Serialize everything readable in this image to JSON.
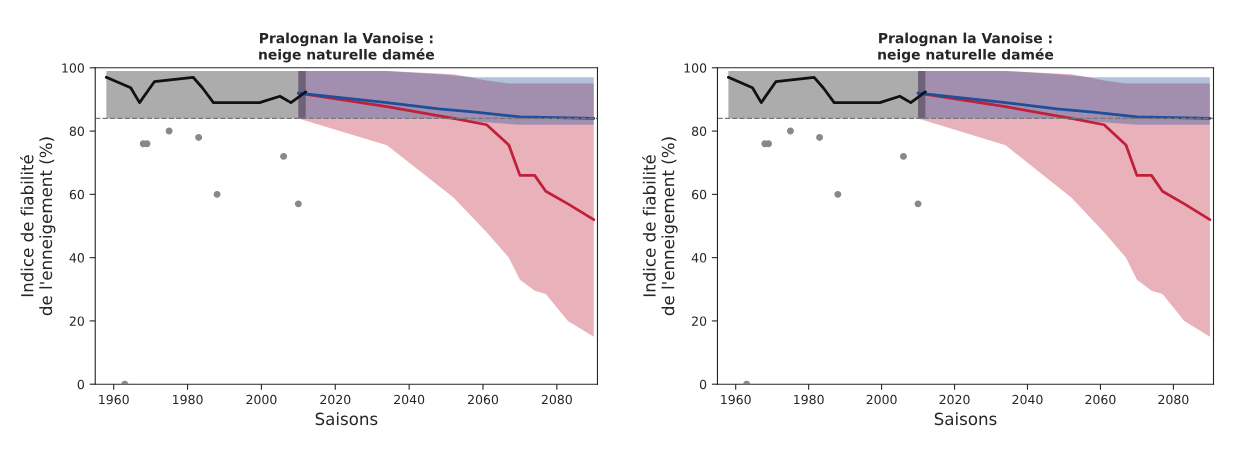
{
  "chart_data": [
    {
      "type": "line",
      "title": "Pralognan la Vanoise :\nneige naturelle damée",
      "xlabel": "Saisons",
      "ylabel": "Indice de fiabilité\nde l'enneigement (%)",
      "xlim": [
        1955,
        2091
      ],
      "xticks": [
        1960,
        1980,
        2000,
        2020,
        2040,
        2060,
        2080
      ],
      "ylim": [
        0,
        100
      ],
      "yticks": [
        0,
        20,
        40,
        60,
        80,
        100
      ],
      "grid": false,
      "legend": false,
      "ref_lines": [
        {
          "axis": "y",
          "value": 84,
          "color": "#777777",
          "line_style": "dashed"
        }
      ],
      "series": [
        {
          "color": "#c0203a",
          "x": [
            2010,
            2034,
            2052,
            2061,
            2067,
            2070,
            2074,
            2077,
            2083,
            2090
          ],
          "values": [
            92,
            87.7,
            84,
            82,
            75.6,
            66,
            66,
            61,
            57,
            52
          ],
          "lower": [
            84,
            75.5,
            59,
            48,
            40,
            33,
            29.5,
            28.5,
            20,
            15
          ],
          "upper": [
            99,
            99,
            98,
            96,
            95,
            95,
            95,
            95,
            95,
            95
          ]
        },
        {
          "color": "#1f4e9a",
          "x": [
            2010,
            2034,
            2048,
            2058,
            2070,
            2090
          ],
          "values": [
            92,
            89,
            87,
            86,
            84.5,
            84
          ],
          "lower": [
            84,
            84,
            84,
            83,
            82,
            82
          ],
          "upper": [
            99,
            99,
            98,
            97,
            97,
            97
          ]
        },
        {
          "color": "#111111",
          "x": [
            1958,
            1964.6,
            1967,
            1971,
            1981.5,
            1984,
            1987,
            1999.5,
            2005,
            2008,
            2012
          ],
          "values": [
            97,
            93.7,
            89,
            95.6,
            97,
            93.7,
            89,
            89,
            91,
            89,
            92.4
          ],
          "lower": [
            84,
            84,
            84,
            84,
            84,
            84,
            84,
            84,
            84,
            84,
            84
          ],
          "upper": [
            99,
            99,
            99,
            99,
            99,
            99,
            99,
            99,
            99,
            99,
            99
          ]
        },
        {
          "type": "scatter",
          "color": "#888888",
          "marker": "circle",
          "x": [
            1963,
            1968,
            1969,
            1975,
            1983,
            1988,
            2006,
            2010
          ],
          "values": [
            0,
            76,
            76,
            80,
            78,
            60,
            72,
            57
          ]
        }
      ]
    },
    {
      "type": "line",
      "title": "Pralognan la Vanoise :\nneige naturelle damée",
      "xlabel": "Saisons",
      "ylabel": "Indice de fiabilité\nde l'enneigement (%)",
      "xlim": [
        1955,
        2091
      ],
      "xticks": [
        1960,
        1980,
        2000,
        2020,
        2040,
        2060,
        2080
      ],
      "ylim": [
        0,
        100
      ],
      "yticks": [
        0,
        20,
        40,
        60,
        80,
        100
      ],
      "grid": false,
      "legend": false,
      "ref_lines": [
        {
          "axis": "y",
          "value": 84,
          "color": "#777777",
          "line_style": "dashed"
        }
      ],
      "series": [
        {
          "color": "#c0203a",
          "x": [
            2010,
            2034,
            2052,
            2061,
            2067,
            2070,
            2074,
            2077,
            2083,
            2090
          ],
          "values": [
            92,
            87.7,
            84,
            82,
            75.6,
            66,
            66,
            61,
            57,
            52
          ],
          "lower": [
            84,
            75.5,
            59,
            48,
            40,
            33,
            29.5,
            28.5,
            20,
            15
          ],
          "upper": [
            99,
            99,
            98,
            96,
            95,
            95,
            95,
            95,
            95,
            95
          ]
        },
        {
          "color": "#1f4e9a",
          "x": [
            2010,
            2034,
            2048,
            2058,
            2070,
            2090
          ],
          "values": [
            92,
            89,
            87,
            86,
            84.5,
            84
          ],
          "lower": [
            84,
            84,
            84,
            83,
            82,
            82
          ],
          "upper": [
            99,
            99,
            98,
            97,
            97,
            97
          ]
        },
        {
          "color": "#111111",
          "x": [
            1958,
            1964.6,
            1967,
            1971,
            1981.5,
            1984,
            1987,
            1999.5,
            2005,
            2008,
            2012
          ],
          "values": [
            97,
            93.7,
            89,
            95.6,
            97,
            93.7,
            89,
            89,
            91,
            89,
            92.4
          ],
          "lower": [
            84,
            84,
            84,
            84,
            84,
            84,
            84,
            84,
            84,
            84,
            84
          ],
          "upper": [
            99,
            99,
            99,
            99,
            99,
            99,
            99,
            99,
            99,
            99,
            99
          ]
        },
        {
          "type": "scatter",
          "color": "#888888",
          "marker": "circle",
          "x": [
            1963,
            1968,
            1969,
            1975,
            1983,
            1988,
            2006,
            2010
          ],
          "values": [
            0,
            76,
            76,
            80,
            78,
            60,
            72,
            57
          ]
        }
      ]
    }
  ]
}
